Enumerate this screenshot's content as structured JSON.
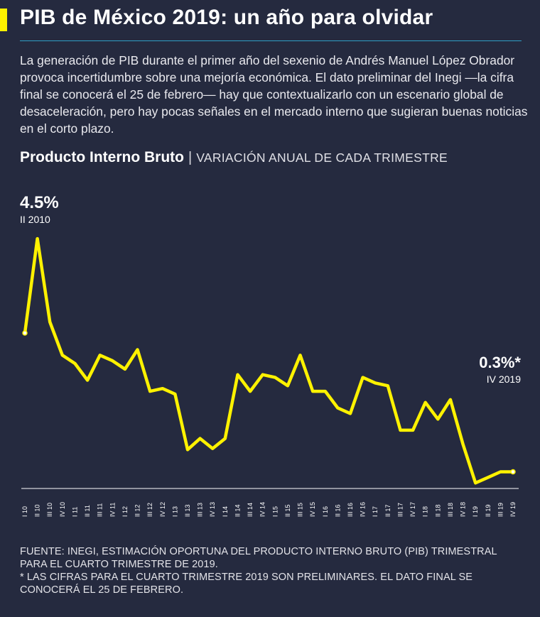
{
  "header": {
    "title": "PIB de México 2019: un año para olvidar",
    "intro": "La generación de PIB durante el primer año del sexenio de Andrés Manuel López Obrador provoca incertidumbre sobre una mejoría económica. El dato preliminar del Inegi —la cifra final se conocerá el 25 de febrero— hay que contextualizarlo con un escenario global de desaceleración, pero hay pocas señales en el mercado interno que sugieran buenas noticias en el corto plazo.",
    "chart_title": "Producto Interno Bruto",
    "chart_separator": "|",
    "chart_subtitle": "VARIACIÓN ANUAL DE CADA TRIMESTRE"
  },
  "colors": {
    "background": "#252a3f",
    "line": "#fff200",
    "accent_bar": "#fff200",
    "title_rule": "#2f9fc6",
    "text": "#ffffff"
  },
  "chart_data": {
    "type": "line",
    "x": [
      "I 10",
      "II 10",
      "III 10",
      "IV 10",
      "I 11",
      "II 11",
      "III 11",
      "IV 11",
      "I 12",
      "II 12",
      "III 12",
      "IV 12",
      "I 13",
      "II 13",
      "III 13",
      "IV 13",
      "I 14",
      "II 14",
      "III 14",
      "IV 14",
      "I 15",
      "II 15",
      "III 15",
      "IV 15",
      "I 16",
      "II 16",
      "III 16",
      "IV 16",
      "I 17",
      "II 17",
      "III 17",
      "IV 17",
      "I 18",
      "II 18",
      "III 18",
      "IV 18",
      "I 19",
      "II 19",
      "III 19",
      "IV 19"
    ],
    "series": [
      {
        "values": [
          2.8,
          4.5,
          3.0,
          2.4,
          2.25,
          1.95,
          2.4,
          2.3,
          2.15,
          2.5,
          1.75,
          1.8,
          1.7,
          0.7,
          0.9,
          0.72,
          0.9,
          2.05,
          1.75,
          2.05,
          2.0,
          1.85,
          2.4,
          1.75,
          1.75,
          1.45,
          1.35,
          2.0,
          1.9,
          1.85,
          1.05,
          1.05,
          1.55,
          1.25,
          1.6,
          0.8,
          0.1,
          0.2,
          0.3,
          0.3
        ]
      }
    ],
    "annotations": [
      {
        "value_label": "4.5%",
        "period_label": "II 2010"
      },
      {
        "value_label": "0.3%*",
        "period_label": "IV 2019"
      }
    ],
    "baseline": 0,
    "grid": false,
    "legend": "none"
  },
  "footer": {
    "source": "FUENTE: INEGI, ESTIMACIÓN OPORTUNA DEL PRODUCTO INTERNO BRUTO (PIB) TRIMESTRAL PARA EL CUARTO TRIMESTRE DE 2019.",
    "note": "* LAS CIFRAS PARA EL CUARTO TRIMESTRE 2019 SON PRELIMINARES. EL DATO FINAL SE CONOCERÁ EL 25 DE FEBRERO."
  }
}
